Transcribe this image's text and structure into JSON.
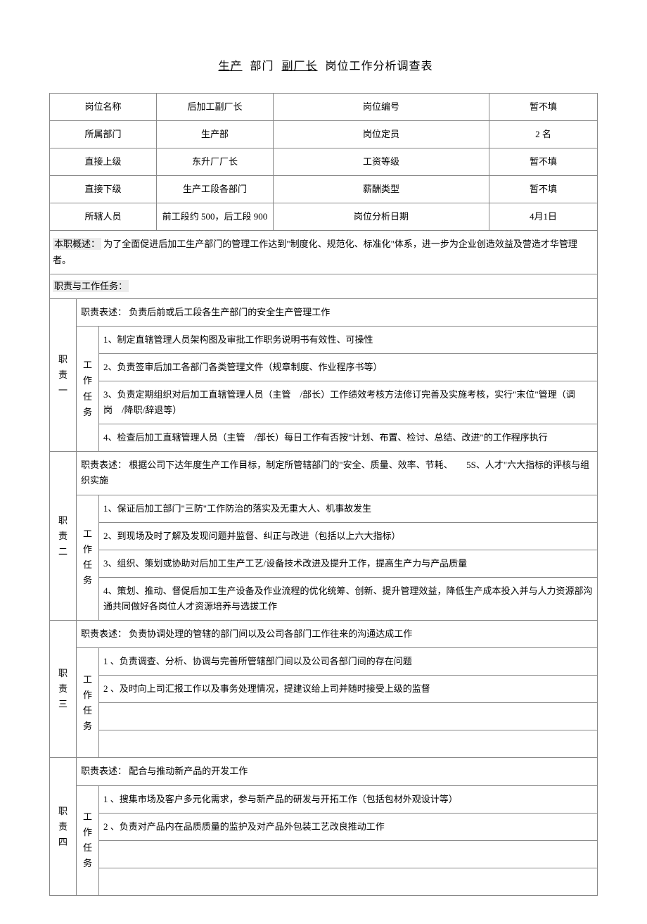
{
  "title": {
    "dept": "生产",
    "word_dept": "部门",
    "role": "副厂长",
    "suffix": "岗位工作分析调查表"
  },
  "header": {
    "rows": [
      {
        "l1": "岗位名称",
        "l2": "后加工副厂长",
        "l3": "岗位编号",
        "l4": "暂不填"
      },
      {
        "l1": "所属部门",
        "l2": "生产部",
        "l3": "岗位定员",
        "l4": "2 名"
      },
      {
        "l1": "直接上级",
        "l2": "东升厂厂长",
        "l3": "工资等级",
        "l4": "暂不填"
      },
      {
        "l1": "直接下级",
        "l2": "生产工段各部门",
        "l3": "薪酬类型",
        "l4": "暂不填"
      },
      {
        "l1": "所辖人员",
        "l2": "前工段约 500，后工段 900",
        "l3": "岗位分析日期",
        "l4": "4月1日"
      }
    ]
  },
  "overview": {
    "label": "本职概述：",
    "text": "为了全面促进后加工生产部门的管理工作达到\"制度化、规范化、标准化\"体系，进一步为企业创造效益及营造才华管理者。"
  },
  "duties_label": "职责与工作任务：",
  "duty_desc_label": "职责表述：",
  "task_label_chars": [
    "工",
    "作",
    "任",
    "务"
  ],
  "duties": [
    {
      "id_chars": [
        "职",
        "责",
        "一"
      ],
      "desc": "负责后前或后工段各生产部门的安全生产管理工作",
      "tasks": [
        "1、制定直辖管理人员架构图及审批工作职务说明书有效性、可操性",
        "2、负责签审后加工各部门各类管理文件（规章制度、作业程序书等）",
        "3、负责定期组织对后加工直辖管理人员（主管　/部长）工作绩效考核方法修订完善及实施考核，实行\"末位\"管理（调岗　/降职/辞退等）",
        "4、检查后加工直辖管理人员（主管　/部长）每日工作有否按\"计划、布置、检讨、总结、改进\"的工作程序执行"
      ]
    },
    {
      "id_chars": [
        "职",
        "责",
        "二"
      ],
      "desc": "根据公司下达年度生产工作目标，制定所管辖部门的\"安全、质量、效率、节耗、　　5S、人才\"六大指标的评核与组织实施",
      "tasks": [
        "1、保证后加工部门\"三防\"工作防治的落实及无重大人、机事故发生",
        "2、到现场及时了解及发现问题并监督、纠正与改进（包括以上六大指标）",
        "3、组织、策划或协助对后加工生产工艺/设备技术改进及提升工作，提高生产力与产品质量",
        "4、策划、推动、督促后加工生产设备及作业流程的优化统筹、创新、提升管理效益，降低生产成本投入并与人力资源部沟通共同做好各岗位人才资源培养与选拔工作"
      ]
    },
    {
      "id_chars": [
        "职",
        "责",
        "三"
      ],
      "desc": "负责协调处理的管辖的部门间以及公司各部门工作往来的沟通达成工作",
      "tasks": [
        "1 、负责调查、分析、协调与完善所管辖部门间以及公司各部门间的存在问题",
        "2 、及时向上司汇报工作以及事务处理情况，提建议给上司并随时接受上级的监督",
        "",
        ""
      ]
    },
    {
      "id_chars": [
        "职",
        "责",
        "四"
      ],
      "desc": "配合与推动新产品的开发工作",
      "tasks": [
        "1 、搜集市场及客户多元化需求，参与新产品的研发与开拓工作（包括包材外观设计等）",
        "2 、负责对产品内在品质质量的监护及对产品外包装工艺改良推动工作",
        "",
        ""
      ]
    }
  ]
}
